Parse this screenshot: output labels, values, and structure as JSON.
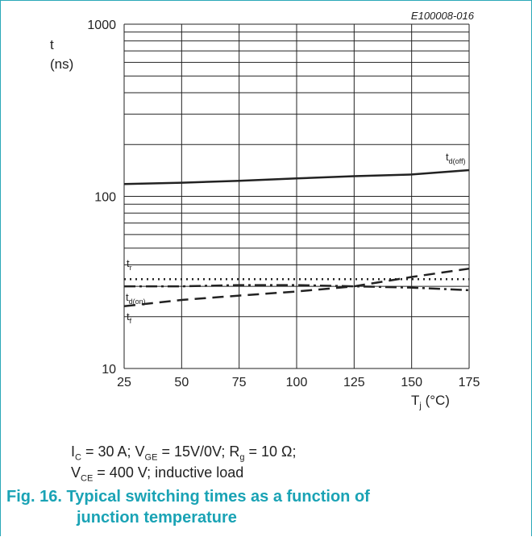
{
  "figure_ref": "E100008-016",
  "y_label_symbol": "t",
  "y_label_unit": "(ns)",
  "x_label": "Tj (°C)",
  "conditions_line1": "IC = 30 A; VGE = 15V/0V; Rg = 10 Ω;",
  "conditions_line2": "VCE = 400 V; inductive load",
  "caption_line1": "Fig. 16. Typical switching times as a function of",
  "caption_line2": "junction temperature",
  "colors": {
    "accent": "#1aa3b5",
    "line": "#222222"
  },
  "chart_data": {
    "type": "line",
    "xlabel": "Tj (°C)",
    "ylabel": "t (ns)",
    "xlim": [
      25,
      175
    ],
    "ylim": [
      10,
      1000
    ],
    "y_scale": "log",
    "grid": true,
    "x_ticks": [
      25,
      50,
      75,
      100,
      125,
      150,
      175
    ],
    "y_ticks": [
      10,
      100,
      1000
    ],
    "series": [
      {
        "name": "td(off)",
        "style": "solid",
        "x": [
          25,
          50,
          75,
          100,
          125,
          150,
          175
        ],
        "values": [
          118,
          120,
          123,
          127,
          131,
          134,
          142
        ]
      },
      {
        "name": "tr",
        "style": "dotted",
        "x": [
          25,
          50,
          75,
          100,
          125,
          150,
          175
        ],
        "values": [
          33,
          33,
          33,
          33,
          33,
          33,
          33
        ]
      },
      {
        "name": "td(on)",
        "style": "dash-dot",
        "x": [
          25,
          50,
          75,
          100,
          125,
          150,
          175
        ],
        "values": [
          30,
          30,
          30.5,
          30.5,
          30,
          29.5,
          28.5
        ]
      },
      {
        "name": "tf",
        "style": "dashed",
        "x": [
          25,
          50,
          75,
          100,
          125,
          150,
          175
        ],
        "values": [
          23,
          25,
          26.5,
          28,
          30,
          34,
          38
        ]
      }
    ]
  }
}
